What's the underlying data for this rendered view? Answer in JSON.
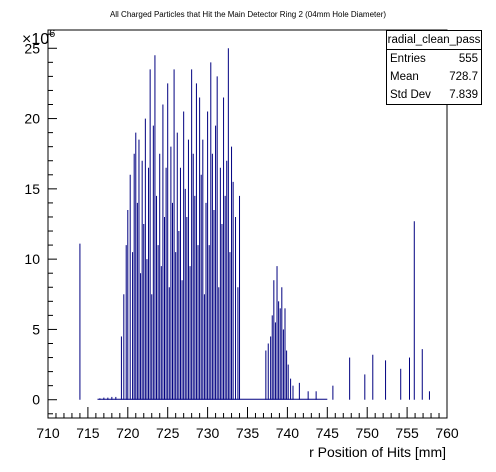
{
  "chart_data": {
    "type": "histogram",
    "title": "All Charged Particles that Hit the Main Detector Ring 2 (04mm Hole Diameter)",
    "xlabel": "r Position of Hits [mm]",
    "ylabel": "",
    "y_multiplier": "×10",
    "y_multiplier_exp": "6",
    "xlim": [
      710,
      760
    ],
    "ylim": [
      -1.3,
      26.3
    ],
    "x_ticks": [
      "710",
      "715",
      "720",
      "725",
      "730",
      "735",
      "740",
      "745",
      "750",
      "755",
      "760"
    ],
    "y_ticks": [
      "0",
      "5",
      "10",
      "15",
      "20",
      "25"
    ],
    "y_tick_values": [
      0,
      5,
      10,
      15,
      20,
      25
    ],
    "x_tick_values": [
      710,
      715,
      720,
      725,
      730,
      735,
      740,
      745,
      750,
      755,
      760
    ],
    "bin_width": 0.1,
    "line_color": "#000080",
    "stats": {
      "name": "radial_clean_pass",
      "rows": [
        {
          "label": "Entries",
          "value": "555"
        },
        {
          "label": "Mean",
          "value": "728.7"
        },
        {
          "label": "Std Dev",
          "value": "7.839"
        }
      ]
    },
    "bins_x": [
      714.0,
      716.5,
      717.0,
      717.5,
      718.0,
      718.5,
      719.2,
      719.5,
      719.8,
      720.0,
      720.3,
      720.6,
      720.8,
      721.0,
      721.2,
      721.4,
      721.6,
      721.8,
      722.0,
      722.2,
      722.4,
      722.6,
      722.8,
      723.0,
      723.2,
      723.4,
      723.6,
      723.8,
      724.0,
      724.2,
      724.4,
      724.6,
      724.8,
      725.0,
      725.2,
      725.4,
      725.6,
      725.8,
      726.0,
      726.2,
      726.4,
      726.6,
      726.8,
      727.0,
      727.2,
      727.4,
      727.6,
      727.8,
      728.0,
      728.2,
      728.4,
      728.6,
      728.8,
      729.0,
      729.2,
      729.4,
      729.6,
      729.8,
      730.0,
      730.2,
      730.4,
      730.6,
      730.8,
      731.0,
      731.2,
      731.4,
      731.6,
      731.8,
      732.0,
      732.2,
      732.4,
      732.6,
      732.8,
      733.0,
      733.2,
      733.5,
      733.8,
      734.0,
      737.3,
      737.6,
      737.9,
      738.1,
      738.3,
      738.5,
      738.7,
      738.9,
      739.1,
      739.3,
      739.5,
      739.7,
      739.9,
      740.1,
      740.4,
      740.7,
      741.5,
      742.6,
      743.6,
      745.7,
      747.8,
      749.7,
      750.7,
      752.3,
      754.2,
      755.3,
      755.9,
      756.9,
      757.8
    ],
    "bins_y": [
      11.1,
      0.1,
      0.15,
      0.15,
      0.2,
      0.2,
      4.5,
      7.5,
      11.0,
      13.5,
      16.0,
      10.5,
      17.5,
      19.0,
      14.0,
      18.5,
      9.0,
      17.0,
      12.5,
      20.0,
      10.0,
      16.5,
      23.5,
      7.5,
      19.5,
      24.5,
      14.5,
      11.0,
      17.5,
      9.5,
      21.0,
      13.0,
      16.5,
      22.5,
      8.0,
      18.0,
      14.0,
      23.5,
      10.5,
      19.0,
      12.0,
      16.5,
      8.5,
      20.5,
      15.0,
      13.0,
      18.5,
      9.5,
      23.5,
      17.5,
      14.5,
      22.5,
      11.0,
      21.5,
      16.0,
      18.5,
      7.5,
      14.0,
      20.5,
      11.0,
      24.0,
      17.5,
      13.5,
      19.5,
      23.0,
      8.0,
      16.5,
      12.5,
      21.5,
      14.5,
      17.0,
      25.0,
      10.5,
      18.0,
      15.5,
      13.0,
      8.0,
      14.5,
      3.5,
      4.0,
      4.5,
      6.0,
      8.5,
      5.5,
      9.5,
      7.0,
      6.5,
      8.0,
      5.0,
      6.5,
      3.5,
      2.5,
      1.5,
      1.0,
      1.2,
      0.6,
      0.6,
      1.0,
      3.0,
      1.8,
      3.2,
      2.8,
      2.2,
      3.0,
      12.7,
      3.6,
      0.6
    ]
  }
}
